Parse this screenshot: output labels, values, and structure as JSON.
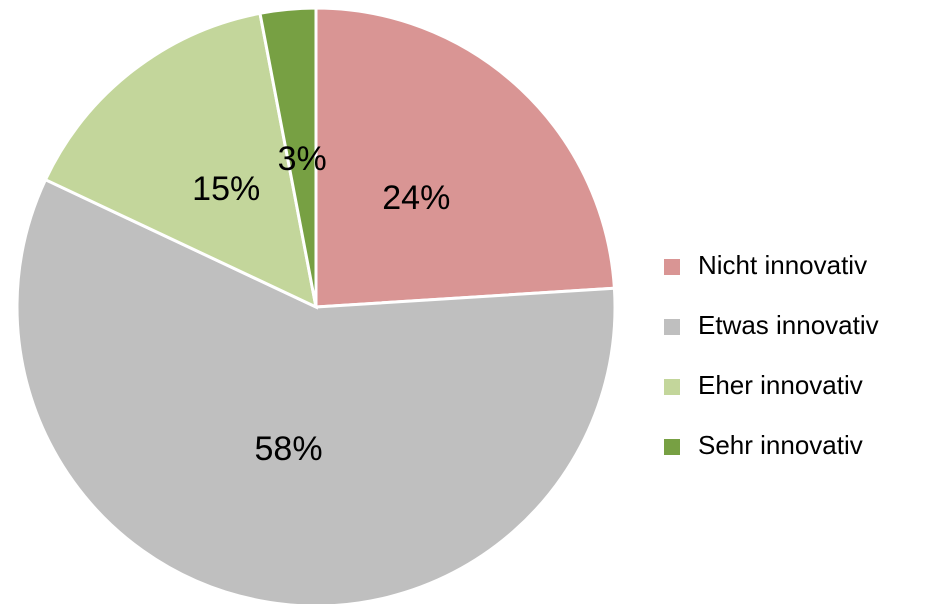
{
  "chart_data": {
    "type": "pie",
    "categories": [
      "Nicht innovativ",
      "Etwas innovativ",
      "Eher innovativ",
      "Sehr innovativ"
    ],
    "values": [
      24,
      58,
      15,
      3
    ],
    "value_labels": [
      "24%",
      "58%",
      "15%",
      "3%"
    ],
    "colors": [
      "#d99594",
      "#bfbfbf",
      "#c3d69b",
      "#77a043"
    ],
    "legend": "right"
  }
}
